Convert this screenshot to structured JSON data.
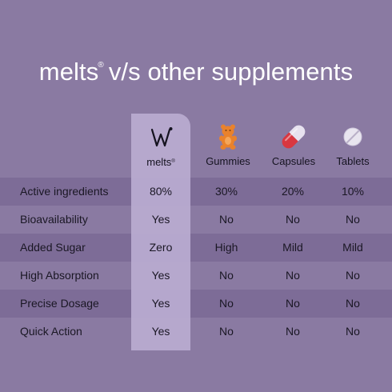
{
  "title": {
    "brand": "melts",
    "registered": "®",
    "rest": "v/s other supplements"
  },
  "columns": [
    {
      "id": "melts",
      "label": "melts",
      "suffix": "®",
      "icon": "melts-w-logo-icon"
    },
    {
      "id": "gummies",
      "label": "Gummies",
      "suffix": "",
      "icon": "gummy-bear-icon"
    },
    {
      "id": "capsules",
      "label": "Capsules",
      "suffix": "",
      "icon": "capsule-icon"
    },
    {
      "id": "tablets",
      "label": "Tablets",
      "suffix": "",
      "icon": "tablet-icon"
    }
  ],
  "rows": [
    {
      "label": "Active ingredients",
      "values": [
        "80%",
        "30%",
        "20%",
        "10%"
      ]
    },
    {
      "label": "Bioavailability",
      "values": [
        "Yes",
        "No",
        "No",
        "No"
      ]
    },
    {
      "label": "Added Sugar",
      "values": [
        "Zero",
        "High",
        "Mild",
        "Mild"
      ]
    },
    {
      "label": "High Absorption",
      "values": [
        "Yes",
        "No",
        "No",
        "No"
      ]
    },
    {
      "label": "Precise Dosage",
      "values": [
        "Yes",
        "No",
        "No",
        "No"
      ]
    },
    {
      "label": "Quick Action",
      "values": [
        "Yes",
        "No",
        "No",
        "No"
      ]
    }
  ],
  "colors": {
    "background": "#8a7aa2",
    "row_shade": "#7d6c97",
    "melts_column": "#b8abd0",
    "title_text": "#ffffff",
    "body_text": "#1a1724",
    "gummy": "#e9822c",
    "capsule_red": "#d93740",
    "capsule_white": "#e7e2ef",
    "tablet": "#e8e5ef"
  }
}
